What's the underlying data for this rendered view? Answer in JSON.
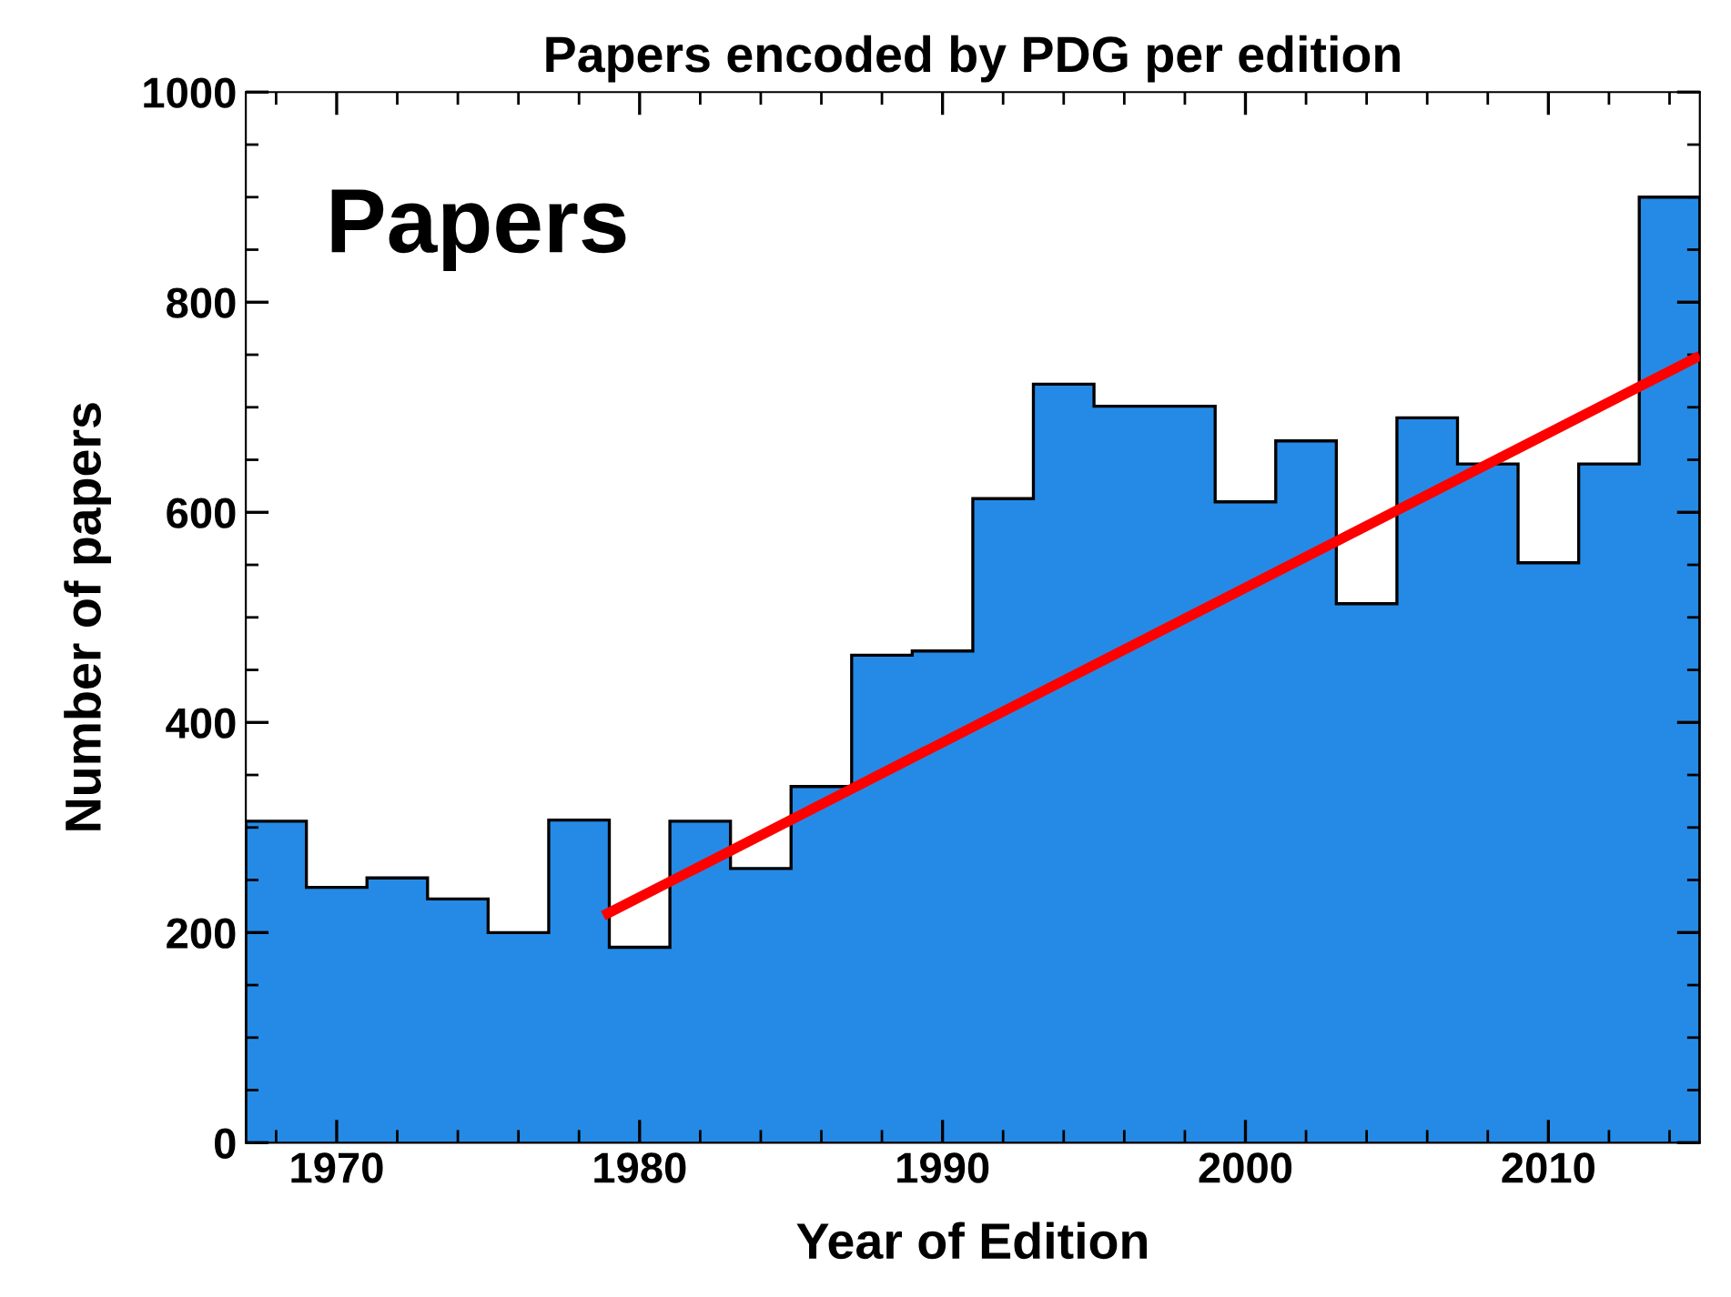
{
  "chart_data": {
    "type": "histogram",
    "title": "Papers encoded by PDG per edition",
    "xlabel": "Year of Edition",
    "ylabel": "Number of papers",
    "annotations": [
      "Papers"
    ],
    "series": [
      {
        "color": "#258ae6",
        "bins": [
          1967,
          1969,
          1971,
          1973,
          1975,
          1977,
          1979,
          1981,
          1983,
          1985,
          1987,
          1989,
          1991,
          1993,
          1995,
          1997,
          1999,
          2001,
          2003,
          2005,
          2007,
          2009,
          2011,
          2013,
          2015
        ],
        "values": [
          306,
          243,
          252,
          232,
          200,
          307,
          186,
          306,
          261,
          339,
          464,
          468,
          613,
          722,
          701,
          701,
          610,
          668,
          513,
          690,
          646,
          552,
          646,
          900
        ]
      },
      {
        "type": "line",
        "color": "#ff0000",
        "x": [
          1978.8,
          2015
        ],
        "values": [
          216,
          749
        ]
      }
    ],
    "xlim": [
      1967,
      2015
    ],
    "xticks": [
      1970,
      1980,
      1990,
      2000,
      2010
    ],
    "ylim": [
      0,
      1000
    ],
    "yticks": [
      0,
      200,
      400,
      600,
      800,
      1000
    ],
    "grid": false,
    "legend": false
  }
}
